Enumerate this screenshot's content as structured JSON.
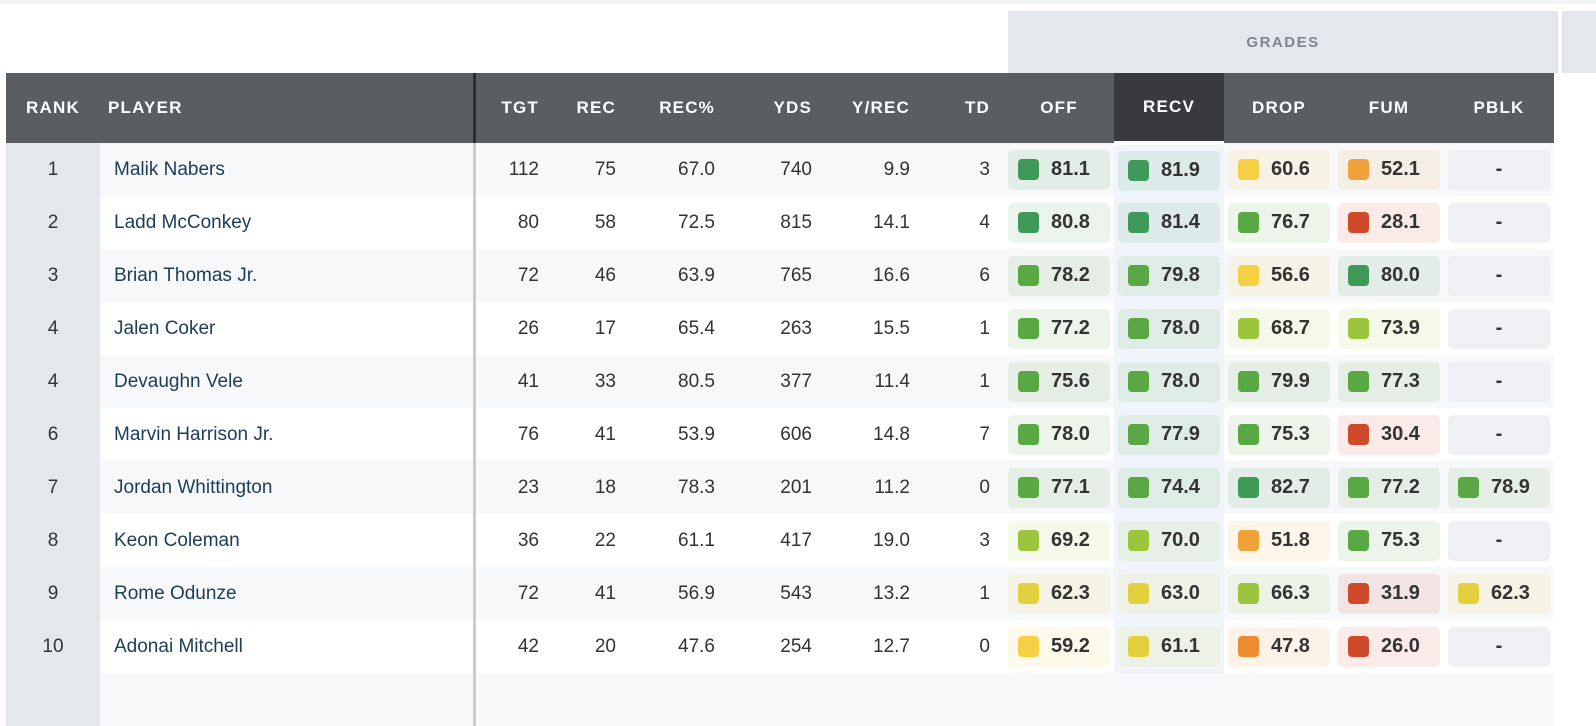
{
  "grades_label": "GRADES",
  "columns": [
    "RANK",
    "PLAYER",
    "TGT",
    "REC",
    "REC%",
    "YDS",
    "Y/REC",
    "TD",
    "OFF",
    "RECV",
    "DROP",
    "FUM",
    "PBLK"
  ],
  "selected_column": "RECV",
  "rows": [
    {
      "rank": "1",
      "player": "Malik Nabers",
      "tgt": "112",
      "rec": "75",
      "recp": "67.0",
      "yds": "740",
      "ypr": "9.9",
      "td": "3",
      "off": "81.1",
      "recv": "81.9",
      "drop": "60.6",
      "fum": "52.1",
      "pblk": "-"
    },
    {
      "rank": "2",
      "player": "Ladd McConkey",
      "tgt": "80",
      "rec": "58",
      "recp": "72.5",
      "yds": "815",
      "ypr": "14.1",
      "td": "4",
      "off": "80.8",
      "recv": "81.4",
      "drop": "76.7",
      "fum": "28.1",
      "pblk": "-"
    },
    {
      "rank": "3",
      "player": "Brian Thomas Jr.",
      "tgt": "72",
      "rec": "46",
      "recp": "63.9",
      "yds": "765",
      "ypr": "16.6",
      "td": "6",
      "off": "78.2",
      "recv": "79.8",
      "drop": "56.6",
      "fum": "80.0",
      "pblk": "-"
    },
    {
      "rank": "4",
      "player": "Jalen Coker",
      "tgt": "26",
      "rec": "17",
      "recp": "65.4",
      "yds": "263",
      "ypr": "15.5",
      "td": "1",
      "off": "77.2",
      "recv": "78.0",
      "drop": "68.7",
      "fum": "73.9",
      "pblk": "-"
    },
    {
      "rank": "4",
      "player": "Devaughn Vele",
      "tgt": "41",
      "rec": "33",
      "recp": "80.5",
      "yds": "377",
      "ypr": "11.4",
      "td": "1",
      "off": "75.6",
      "recv": "78.0",
      "drop": "79.9",
      "fum": "77.3",
      "pblk": "-"
    },
    {
      "rank": "6",
      "player": "Marvin Harrison Jr.",
      "tgt": "76",
      "rec": "41",
      "recp": "53.9",
      "yds": "606",
      "ypr": "14.8",
      "td": "7",
      "off": "78.0",
      "recv": "77.9",
      "drop": "75.3",
      "fum": "30.4",
      "pblk": "-"
    },
    {
      "rank": "7",
      "player": "Jordan Whittington",
      "tgt": "23",
      "rec": "18",
      "recp": "78.3",
      "yds": "201",
      "ypr": "11.2",
      "td": "0",
      "off": "77.1",
      "recv": "74.4",
      "drop": "82.7",
      "fum": "77.2",
      "pblk": "78.9"
    },
    {
      "rank": "8",
      "player": "Keon Coleman",
      "tgt": "36",
      "rec": "22",
      "recp": "61.1",
      "yds": "417",
      "ypr": "19.0",
      "td": "3",
      "off": "69.2",
      "recv": "70.0",
      "drop": "51.8",
      "fum": "75.3",
      "pblk": "-"
    },
    {
      "rank": "9",
      "player": "Rome Odunze",
      "tgt": "72",
      "rec": "41",
      "recp": "56.9",
      "yds": "543",
      "ypr": "13.2",
      "td": "1",
      "off": "62.3",
      "recv": "63.0",
      "drop": "66.3",
      "fum": "31.9",
      "pblk": "62.3"
    },
    {
      "rank": "10",
      "player": "Adonai Mitchell",
      "tgt": "42",
      "rec": "20",
      "recp": "47.6",
      "yds": "254",
      "ypr": "12.7",
      "td": "0",
      "off": "59.2",
      "recv": "61.1",
      "drop": "47.8",
      "fum": "26.0",
      "pblk": "-"
    }
  ],
  "grade_colors": {
    "elite": "#3f9a5a",
    "high": "#5aa844",
    "good": "#9cc43c",
    "avg": "#e2d03e",
    "below": "#f6cf45",
    "low": "#f0a23a",
    "poor": "#ec8c30",
    "bad": "#cf4a2a"
  }
}
